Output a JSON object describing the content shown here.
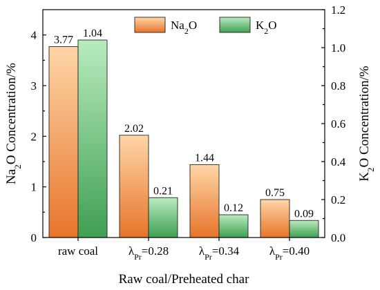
{
  "chart_data": {
    "type": "bar",
    "categories": [
      {
        "main": "raw coal",
        "lambda_sub": "",
        "eq": ""
      },
      {
        "main": "λ",
        "lambda_sub": "Pr",
        "eq": "=0.28"
      },
      {
        "main": "λ",
        "lambda_sub": "Pr",
        "eq": "=0.34"
      },
      {
        "main": "λ",
        "lambda_sub": "Pr",
        "eq": "=0.40"
      }
    ],
    "series": [
      {
        "name": {
          "base": "Na",
          "sub": "2",
          "tail": "O"
        },
        "axis": "left",
        "values": [
          3.77,
          2.02,
          1.44,
          0.75
        ],
        "labels": [
          "3.77",
          "2.02",
          "1.44",
          "0.75"
        ],
        "color_top": "#ffd6a8",
        "color_bottom": "#e6742a"
      },
      {
        "name": {
          "base": "K",
          "sub": "2",
          "tail": "O"
        },
        "axis": "right",
        "values": [
          1.04,
          0.21,
          0.12,
          0.09
        ],
        "labels": [
          "1.04",
          "0.21",
          "0.12",
          "0.09"
        ],
        "color_top": "#b9ebbf",
        "color_bottom": "#3f9f52"
      }
    ],
    "xlabel": "Raw coal/Preheated char",
    "ylabel_left": {
      "base": "Na",
      "sub": "2",
      "tail": "O Concentration/%"
    },
    "ylabel_right": {
      "base": "K",
      "sub": "2",
      "tail": "O Concentration/%"
    },
    "ylim_left": [
      0,
      4.5
    ],
    "ylim_right": [
      0,
      1.2
    ],
    "yticks_left": [
      0,
      1,
      2,
      3,
      4
    ],
    "yticks_left_labels": [
      "0",
      "1",
      "2",
      "3",
      "4"
    ],
    "yticks_right": [
      0,
      0.2,
      0.4,
      0.6,
      0.8,
      1.0,
      1.2
    ],
    "yticks_right_labels": [
      "0.0",
      "0.2",
      "0.4",
      "0.6",
      "0.8",
      "1.0",
      "1.2"
    ],
    "legend_position": "top-right",
    "grid": false
  }
}
